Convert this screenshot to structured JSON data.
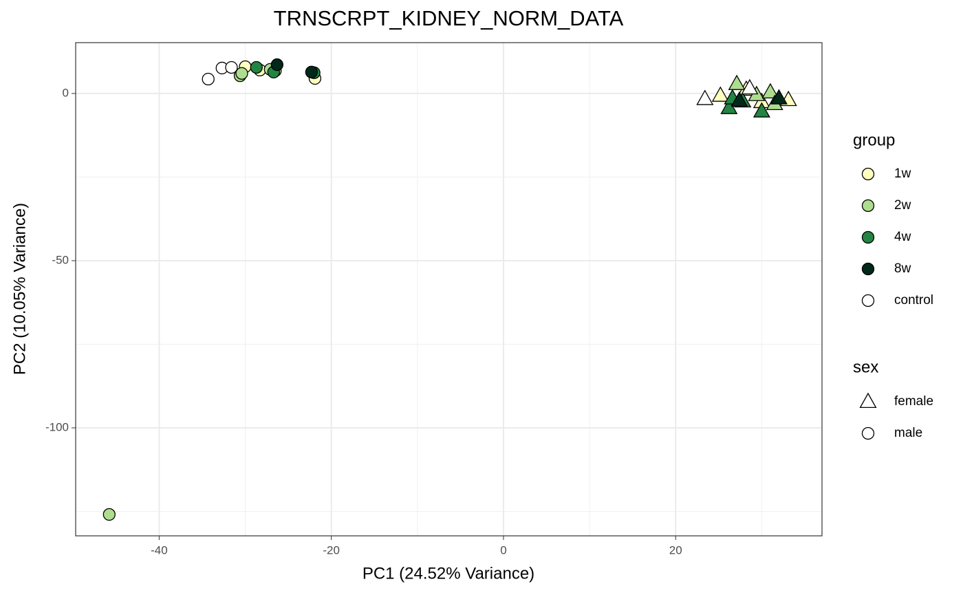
{
  "chart_data": {
    "type": "scatter",
    "title": "TRNSCRPT_KIDNEY_NORM_DATA",
    "x_label": "PC1 (24.52% Variance)",
    "y_label": "PC2 (10.05% Variance)",
    "xlim": [
      -49.7,
      37.0
    ],
    "ylim": [
      -132.3,
      15.2
    ],
    "xticks": [
      -40,
      -20,
      0,
      20
    ],
    "yticks": [
      -100,
      -50,
      0
    ],
    "x_minor_grid": [
      -30,
      -10,
      10,
      30
    ],
    "y_minor_grid": [
      -125,
      -75,
      -25
    ],
    "grid": true,
    "legend_position": "right",
    "color_legend_title": "group",
    "shape_legend_title": "sex",
    "shapes": [
      {
        "name": "female",
        "shape": "triangle"
      },
      {
        "name": "male",
        "shape": "circle"
      }
    ],
    "series": [
      {
        "name": "1w",
        "color": "#ffffbf",
        "x": [
          -30.0,
          -28.3,
          -21.9,
          25.2,
          28.2,
          30.0,
          33.1
        ],
        "values": [
          8.0,
          7.0,
          4.5,
          -0.6,
          1.2,
          -2.5,
          -1.9
        ],
        "sex": [
          "male",
          "male",
          "male",
          "female",
          "female",
          "female",
          "female"
        ]
      },
      {
        "name": "2w",
        "color": "#addd8e",
        "x": [
          -30.6,
          -30.4,
          -27.1,
          -26.5,
          -45.8,
          27.1,
          29.4,
          31.0,
          31.5
        ],
        "values": [
          5.3,
          6.0,
          7.2,
          6.8,
          -125.9,
          2.9,
          -0.4,
          0.4,
          -3.1
        ],
        "sex": [
          "male",
          "male",
          "male",
          "male",
          "male",
          "female",
          "female",
          "female",
          "female"
        ]
      },
      {
        "name": "4w",
        "color": "#238443",
        "x": [
          -28.7,
          -26.7,
          -22.0,
          26.2,
          26.6,
          27.8,
          30.0
        ],
        "values": [
          7.8,
          6.4,
          6.2,
          -4.3,
          -1.4,
          -2.3,
          -5.3
        ],
        "sex": [
          "male",
          "male",
          "male",
          "female",
          "female",
          "female",
          "female"
        ]
      },
      {
        "name": "8w",
        "color": "#00291a",
        "x": [
          -26.3,
          -22.3,
          27.4,
          32.0
        ],
        "values": [
          8.6,
          6.4,
          -2.1,
          -1.4
        ],
        "sex": [
          "male",
          "male",
          "female",
          "female"
        ]
      },
      {
        "name": "control",
        "color": "#ffffff",
        "x": [
          -34.3,
          -32.7,
          -31.6,
          23.4,
          28.6
        ],
        "values": [
          4.3,
          7.6,
          7.8,
          -1.6,
          1.6
        ],
        "sex": [
          "male",
          "male",
          "male",
          "female",
          "female"
        ]
      }
    ]
  }
}
